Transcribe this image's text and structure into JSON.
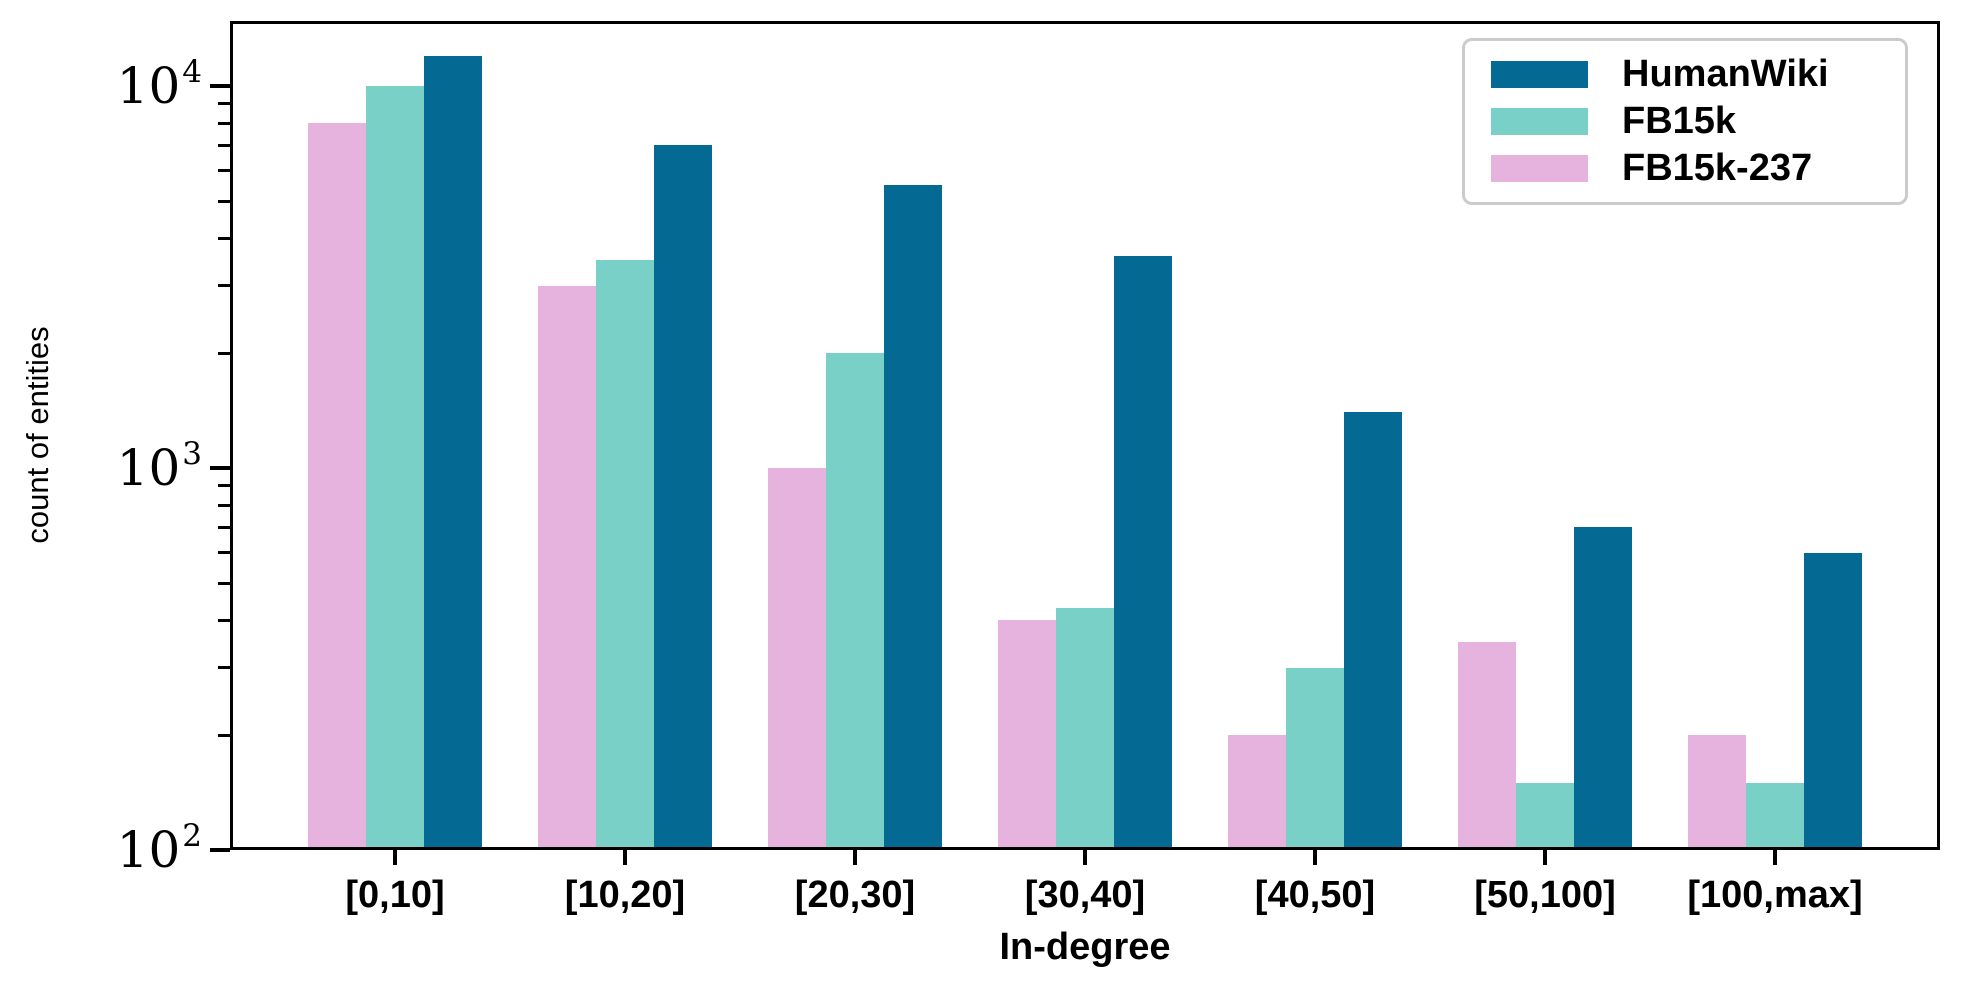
{
  "figure": {
    "background": "#ffffff",
    "axis_color": "#000000"
  },
  "axes": {
    "ylabel": "count of entities",
    "xlabel": "In-degree",
    "y_scale": "log",
    "y_ticks": [
      {
        "base": "10",
        "exp": "2",
        "value": 100
      },
      {
        "base": "10",
        "exp": "3",
        "value": 1000
      },
      {
        "base": "10",
        "exp": "4",
        "value": 10000
      }
    ]
  },
  "legend": {
    "border_color": "#cbcbcb",
    "items": [
      {
        "label": "HumanWiki",
        "color": "#056a93"
      },
      {
        "label": "FB15k",
        "color": "#79d0c6"
      },
      {
        "label": "FB15k-237",
        "color": "#e6b2de"
      }
    ]
  },
  "chart_data": {
    "type": "bar",
    "title": "",
    "xlabel": "In-degree",
    "ylabel": "count of entities",
    "yscale": "log",
    "ylim": [
      100,
      14800
    ],
    "grid": false,
    "legend_position": "upper right",
    "categories": [
      "[0,10]",
      "[10,20]",
      "[20,30]",
      "[30,40]",
      "[40,50]",
      "[50,100]",
      "[100,max]"
    ],
    "series": [
      {
        "name": "FB15k-237",
        "color": "#e6b2de",
        "values": [
          8000,
          3000,
          1000,
          400,
          200,
          350,
          200
        ]
      },
      {
        "name": "FB15k",
        "color": "#79d0c6",
        "values": [
          10000,
          3500,
          2000,
          430,
          300,
          150,
          150
        ]
      },
      {
        "name": "HumanWiki",
        "color": "#056a93",
        "values": [
          12000,
          7000,
          5500,
          3600,
          1400,
          700,
          600
        ]
      }
    ]
  }
}
